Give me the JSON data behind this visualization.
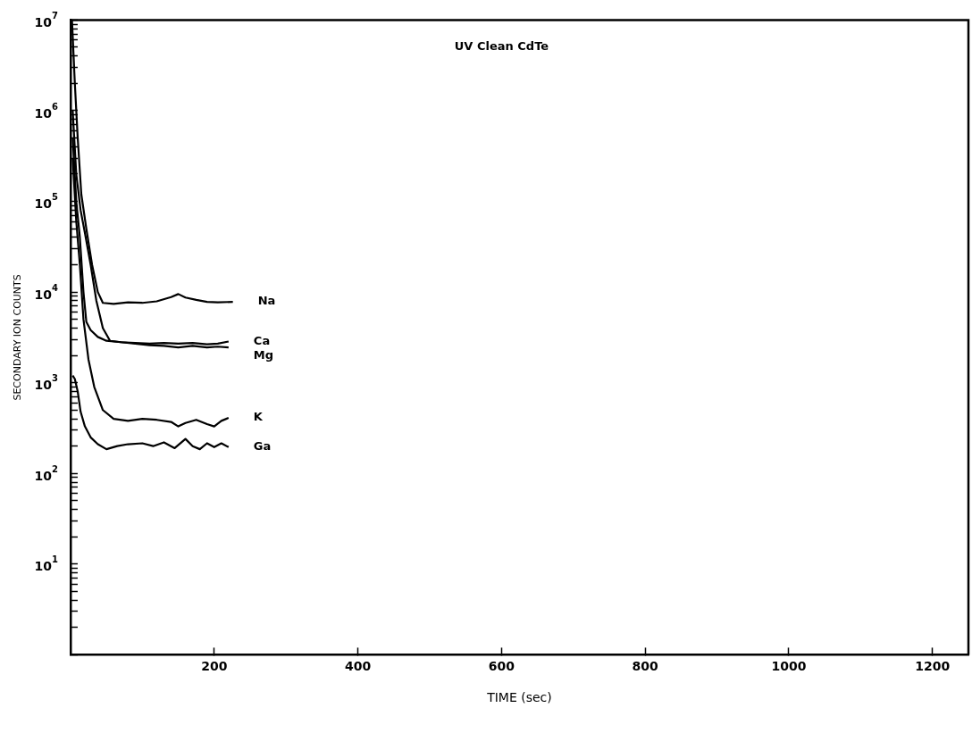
{
  "chart_data": {
    "type": "line",
    "title": "UV Clean CdTe",
    "xlabel": "TIME (sec)",
    "ylabel": "SECONDARY ION COUNTS",
    "log": "y",
    "grid": false,
    "legend": false,
    "marker": "none",
    "line_style": "solid",
    "xlim": [
      0,
      1250
    ],
    "xticks": [
      200,
      400,
      600,
      800,
      1000,
      1200
    ],
    "ylim": [
      1,
      10000000
    ],
    "yticks": [
      {
        "value": 1,
        "label": null
      },
      {
        "value": 2,
        "label": null
      },
      {
        "value": 3,
        "label": null
      },
      {
        "value": 4,
        "label": null
      },
      {
        "value": 5,
        "label": null
      },
      {
        "value": 6,
        "label": null
      },
      {
        "value": 7,
        "label": null
      },
      {
        "value": 8,
        "label": null
      },
      {
        "value": 9,
        "label": null
      },
      {
        "value": 10,
        "label": "10$^{1}$"
      },
      {
        "value": 20,
        "label": null
      },
      {
        "value": 30,
        "label": null
      },
      {
        "value": 40,
        "label": null
      },
      {
        "value": 50,
        "label": null
      },
      {
        "value": 60,
        "label": null
      },
      {
        "value": 70,
        "label": null
      },
      {
        "value": 80,
        "label": null
      },
      {
        "value": 90,
        "label": null
      },
      {
        "value": 100,
        "label": "10$^{2}$"
      },
      {
        "value": 200,
        "label": null
      },
      {
        "value": 300,
        "label": null
      },
      {
        "value": 400,
        "label": null
      },
      {
        "value": 500,
        "label": null
      },
      {
        "value": 600,
        "label": null
      },
      {
        "value": 700,
        "label": null
      },
      {
        "value": 800,
        "label": null
      },
      {
        "value": 900,
        "label": null
      },
      {
        "value": 1000,
        "label": "10$^{3}$"
      },
      {
        "value": 2000,
        "label": null
      },
      {
        "value": 3000,
        "label": null
      },
      {
        "value": 4000,
        "label": null
      },
      {
        "value": 5000,
        "label": null
      },
      {
        "value": 6000,
        "label": null
      },
      {
        "value": 7000,
        "label": null
      },
      {
        "value": 8000,
        "label": null
      },
      {
        "value": 9000,
        "label": null
      },
      {
        "value": 10000,
        "label": "10$^{4}$"
      },
      {
        "value": 20000,
        "label": null
      },
      {
        "value": 30000,
        "label": null
      },
      {
        "value": 40000,
        "label": null
      },
      {
        "value": 50000,
        "label": null
      },
      {
        "value": 60000,
        "label": null
      },
      {
        "value": 70000,
        "label": null
      },
      {
        "value": 80000,
        "label": null
      },
      {
        "value": 90000,
        "label": null
      },
      {
        "value": 100000,
        "label": "10$^{5}$"
      },
      {
        "value": 200000,
        "label": null
      },
      {
        "value": 300000,
        "label": null
      },
      {
        "value": 400000,
        "label": null
      },
      {
        "value": 500000,
        "label": null
      },
      {
        "value": 600000,
        "label": null
      },
      {
        "value": 700000,
        "label": null
      },
      {
        "value": 800000,
        "label": null
      },
      {
        "value": 900000,
        "label": null
      },
      {
        "value": 1000000,
        "label": "10$^{6}$"
      },
      {
        "value": 2000000,
        "label": null
      },
      {
        "value": 3000000,
        "label": null
      },
      {
        "value": 4000000,
        "label": null
      },
      {
        "value": 5000000,
        "label": null
      },
      {
        "value": 6000000,
        "label": null
      },
      {
        "value": 7000000,
        "label": null
      },
      {
        "value": 8000000,
        "label": null
      },
      {
        "value": 9000000,
        "label": null
      },
      {
        "value": 10000000,
        "label": "10$^{7}$"
      }
    ],
    "series": [
      {
        "name": "Na",
        "color": "#000000",
        "x": [
          2,
          6,
          10,
          15,
          22,
          30,
          38,
          45,
          60,
          80,
          100,
          120,
          140,
          150,
          160,
          175,
          190,
          205,
          226
        ],
        "values": [
          10000000,
          2000000,
          500000,
          120000,
          50000,
          20000,
          10000,
          7600,
          7400,
          7700,
          7600,
          7900,
          8800,
          9500,
          8700,
          8200,
          7800,
          7700,
          7800
        ]
      },
      {
        "name": "Ca",
        "color": "#000000",
        "x": [
          3,
          8,
          14,
          20,
          28,
          36,
          45,
          55,
          70,
          90,
          110,
          130,
          150,
          170,
          190,
          205,
          220
        ],
        "values": [
          1000000,
          200000,
          80000,
          45000,
          20000,
          8000,
          4000,
          2900,
          2800,
          2750,
          2700,
          2750,
          2700,
          2750,
          2650,
          2700,
          2850
        ]
      },
      {
        "name": "Mg",
        "color": "#000000",
        "x": [
          3,
          8,
          13,
          18,
          22,
          28,
          38,
          50,
          70,
          90,
          110,
          130,
          150,
          170,
          190,
          205,
          220
        ],
        "values": [
          500000,
          100000,
          40000,
          10000,
          4700,
          3800,
          3200,
          2900,
          2800,
          2700,
          2600,
          2550,
          2450,
          2550,
          2450,
          2500,
          2450
        ]
      },
      {
        "name": "K",
        "color": "#000000",
        "x": [
          3,
          8,
          13,
          18,
          25,
          33,
          45,
          60,
          80,
          100,
          120,
          140,
          150,
          160,
          175,
          190,
          200,
          210,
          220
        ],
        "values": [
          300000,
          60000,
          20000,
          5000,
          1800,
          900,
          500,
          400,
          380,
          400,
          390,
          370,
          330,
          360,
          390,
          350,
          330,
          380,
          410
        ]
      },
      {
        "name": "Ga",
        "color": "#000000",
        "x": [
          3,
          6,
          10,
          14,
          20,
          28,
          38,
          50,
          65,
          80,
          100,
          115,
          130,
          145,
          160,
          170,
          180,
          190,
          200,
          210,
          220
        ],
        "values": [
          1200,
          1100,
          800,
          480,
          330,
          250,
          210,
          185,
          200,
          210,
          215,
          200,
          220,
          190,
          240,
          200,
          185,
          215,
          195,
          215,
          195
        ]
      }
    ]
  }
}
